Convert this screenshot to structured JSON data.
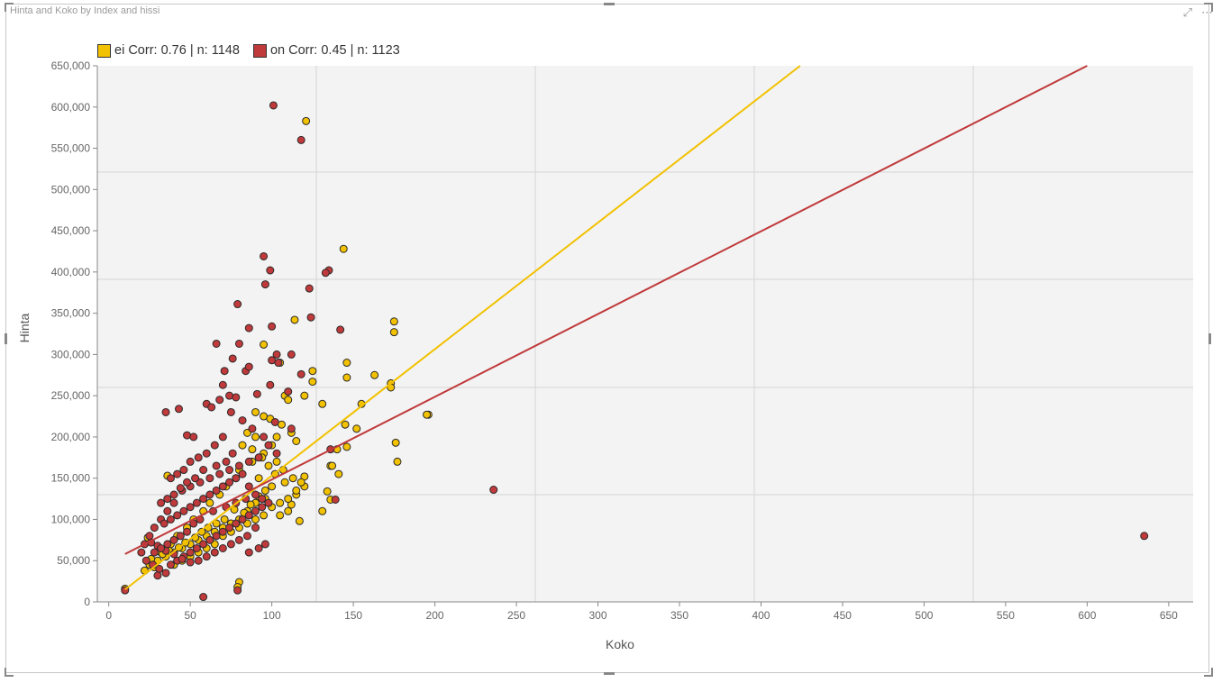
{
  "visual": {
    "title": "Hinta and Koko by Index and hissi",
    "focus_icon": "focus-mode-icon",
    "more_icon": "more-options-icon"
  },
  "legend": [
    {
      "color_name": "ei",
      "text": "Corr: 0.76 | n: 1148",
      "color": "#f2c100"
    },
    {
      "color_name": "on",
      "text": "Corr: 0.45 | n: 1123",
      "color": "#c0393b"
    }
  ],
  "chart_data": {
    "type": "scatter",
    "xlabel": "Koko",
    "ylabel": "Hinta",
    "xlim": [
      -7,
      665
    ],
    "ylim": [
      0,
      650000
    ],
    "x_ticks": [
      0,
      50,
      100,
      150,
      200,
      250,
      300,
      350,
      400,
      450,
      500,
      550,
      600,
      650
    ],
    "y_ticks": [
      0,
      50000,
      100000,
      150000,
      200000,
      250000,
      300000,
      350000,
      400000,
      450000,
      500000,
      550000,
      600000,
      650000
    ],
    "x_tick_labels": [
      "0",
      "50",
      "100",
      "150",
      "200",
      "250",
      "300",
      "350",
      "400",
      "450",
      "500",
      "550",
      "600",
      "650"
    ],
    "y_tick_labels": [
      "0",
      "50,000",
      "100,000",
      "150,000",
      "200,000",
      "250,000",
      "300,000",
      "350,000",
      "400,000",
      "450,000",
      "500,000",
      "550,000",
      "600,000",
      "650,000"
    ],
    "grid": true,
    "background": "#f3f3f3",
    "legend_position": "top-left",
    "series": [
      {
        "name": "ei",
        "color": "#f2c100",
        "trend": {
          "x": [
            10,
            424
          ],
          "y": [
            15000,
            650000
          ]
        },
        "points": [
          [
            144,
            428000
          ],
          [
            121,
            583000
          ],
          [
            95,
            312000
          ],
          [
            114,
            342000
          ],
          [
            175,
            340000
          ],
          [
            175,
            327000
          ],
          [
            146,
            290000
          ],
          [
            146,
            272000
          ],
          [
            105,
            290000
          ],
          [
            125,
            280000
          ],
          [
            125,
            267000
          ],
          [
            163,
            275000
          ],
          [
            173,
            265000
          ],
          [
            173,
            260000
          ],
          [
            108,
            250000
          ],
          [
            110,
            245000
          ],
          [
            131,
            240000
          ],
          [
            155,
            240000
          ],
          [
            120,
            250000
          ],
          [
            196,
            227000
          ],
          [
            195,
            227000
          ],
          [
            145,
            215000
          ],
          [
            152,
            210000
          ],
          [
            106,
            215000
          ],
          [
            112,
            205000
          ],
          [
            115,
            195000
          ],
          [
            103,
            200000
          ],
          [
            100,
            190000
          ],
          [
            176,
            193000
          ],
          [
            177,
            170000
          ],
          [
            146,
            188000
          ],
          [
            140,
            185000
          ],
          [
            136,
            165000
          ],
          [
            137,
            165000
          ],
          [
            141,
            155000
          ],
          [
            120,
            152000
          ],
          [
            120,
            140000
          ],
          [
            115,
            130000
          ],
          [
            112,
            118000
          ],
          [
            110,
            110000
          ],
          [
            105,
            105000
          ],
          [
            117,
            98000
          ],
          [
            131,
            110000
          ],
          [
            136,
            124000
          ],
          [
            134,
            134000
          ],
          [
            90,
            230000
          ],
          [
            95,
            225000
          ],
          [
            99,
            222000
          ],
          [
            85,
            205000
          ],
          [
            90,
            200000
          ],
          [
            95,
            180000
          ],
          [
            88,
            170000
          ],
          [
            80,
            160000
          ],
          [
            92,
            150000
          ],
          [
            100,
            140000
          ],
          [
            96,
            125000
          ],
          [
            90,
            120000
          ],
          [
            85,
            110000
          ],
          [
            80,
            100000
          ],
          [
            75,
            95000
          ],
          [
            70,
            90000
          ],
          [
            65,
            85000
          ],
          [
            60,
            80000
          ],
          [
            55,
            75000
          ],
          [
            50,
            70000
          ],
          [
            45,
            65000
          ],
          [
            40,
            60000
          ],
          [
            35,
            55000
          ],
          [
            30,
            50000
          ],
          [
            25,
            45000
          ],
          [
            22,
            38000
          ],
          [
            28,
            42000
          ],
          [
            36,
            153000
          ],
          [
            40,
            45000
          ],
          [
            45,
            50000
          ],
          [
            50,
            55000
          ],
          [
            55,
            60000
          ],
          [
            60,
            65000
          ],
          [
            65,
            70000
          ],
          [
            70,
            80000
          ],
          [
            75,
            85000
          ],
          [
            80,
            90000
          ],
          [
            85,
            95000
          ],
          [
            90,
            100000
          ],
          [
            95,
            105000
          ],
          [
            100,
            115000
          ],
          [
            105,
            120000
          ],
          [
            110,
            125000
          ],
          [
            115,
            135000
          ],
          [
            108,
            145000
          ],
          [
            102,
            155000
          ],
          [
            98,
            165000
          ],
          [
            94,
            175000
          ],
          [
            88,
            185000
          ],
          [
            82,
            190000
          ],
          [
            78,
            150000
          ],
          [
            72,
            140000
          ],
          [
            68,
            130000
          ],
          [
            62,
            120000
          ],
          [
            58,
            110000
          ],
          [
            52,
            100000
          ],
          [
            48,
            90000
          ],
          [
            42,
            80000
          ],
          [
            38,
            70000
          ],
          [
            32,
            60000
          ],
          [
            26,
            52000
          ],
          [
            24,
            78000
          ],
          [
            80,
            24000
          ],
          [
            79,
            18000
          ],
          [
            10,
            16000
          ],
          [
            103,
            170000
          ],
          [
            107,
            160000
          ],
          [
            113,
            150000
          ],
          [
            118,
            145000
          ],
          [
            96,
            135000
          ],
          [
            92,
            128000
          ],
          [
            87,
            118000
          ],
          [
            83,
            108000
          ],
          [
            77,
            112000
          ],
          [
            71,
            100000
          ],
          [
            66,
            95000
          ],
          [
            61,
            90000
          ],
          [
            57,
            85000
          ],
          [
            53,
            78000
          ],
          [
            47,
            72000
          ],
          [
            43,
            66000
          ],
          [
            37,
            62000
          ],
          [
            33,
            58000
          ]
        ]
      },
      {
        "name": "on",
        "color": "#c0393b",
        "trend": {
          "x": [
            10,
            600
          ],
          "y": [
            58000,
            650000
          ]
        },
        "points": [
          [
            101,
            602000
          ],
          [
            118,
            560000
          ],
          [
            95,
            419000
          ],
          [
            99,
            402000
          ],
          [
            135,
            402000
          ],
          [
            133,
            399000
          ],
          [
            123,
            380000
          ],
          [
            96,
            385000
          ],
          [
            79,
            361000
          ],
          [
            124,
            345000
          ],
          [
            100,
            334000
          ],
          [
            86,
            332000
          ],
          [
            142,
            330000
          ],
          [
            66,
            313000
          ],
          [
            80,
            313000
          ],
          [
            103,
            300000
          ],
          [
            112,
            300000
          ],
          [
            100,
            293000
          ],
          [
            104,
            290000
          ],
          [
            76,
            295000
          ],
          [
            84,
            280000
          ],
          [
            86,
            285000
          ],
          [
            118,
            276000
          ],
          [
            71,
            280000
          ],
          [
            99,
            263000
          ],
          [
            70,
            263000
          ],
          [
            110,
            255000
          ],
          [
            91,
            252000
          ],
          [
            74,
            250000
          ],
          [
            78,
            248000
          ],
          [
            68,
            245000
          ],
          [
            60,
            240000
          ],
          [
            63,
            236000
          ],
          [
            35,
            230000
          ],
          [
            43,
            234000
          ],
          [
            102,
            218000
          ],
          [
            112,
            210000
          ],
          [
            48,
            202000
          ],
          [
            52,
            200000
          ],
          [
            236,
            136000
          ],
          [
            635,
            80000
          ],
          [
            136,
            185000
          ],
          [
            139,
            124000
          ],
          [
            58,
            6000
          ],
          [
            79,
            14000
          ],
          [
            10,
            14000
          ],
          [
            75,
            230000
          ],
          [
            82,
            220000
          ],
          [
            88,
            210000
          ],
          [
            95,
            200000
          ],
          [
            98,
            190000
          ],
          [
            103,
            180000
          ],
          [
            92,
            175000
          ],
          [
            86,
            170000
          ],
          [
            80,
            165000
          ],
          [
            74,
            160000
          ],
          [
            68,
            155000
          ],
          [
            62,
            150000
          ],
          [
            56,
            145000
          ],
          [
            50,
            140000
          ],
          [
            45,
            135000
          ],
          [
            40,
            130000
          ],
          [
            36,
            125000
          ],
          [
            32,
            120000
          ],
          [
            70,
            200000
          ],
          [
            65,
            190000
          ],
          [
            60,
            180000
          ],
          [
            55,
            175000
          ],
          [
            50,
            170000
          ],
          [
            46,
            160000
          ],
          [
            42,
            155000
          ],
          [
            38,
            150000
          ],
          [
            76,
            180000
          ],
          [
            72,
            170000
          ],
          [
            66,
            165000
          ],
          [
            58,
            160000
          ],
          [
            53,
            150000
          ],
          [
            48,
            145000
          ],
          [
            44,
            138000
          ],
          [
            40,
            120000
          ],
          [
            36,
            110000
          ],
          [
            32,
            100000
          ],
          [
            28,
            90000
          ],
          [
            25,
            80000
          ],
          [
            22,
            70000
          ],
          [
            20,
            60000
          ],
          [
            23,
            50000
          ],
          [
            27,
            45000
          ],
          [
            31,
            40000
          ],
          [
            35,
            35000
          ],
          [
            30,
            32000
          ],
          [
            38,
            45000
          ],
          [
            42,
            50000
          ],
          [
            46,
            55000
          ],
          [
            50,
            60000
          ],
          [
            54,
            65000
          ],
          [
            58,
            70000
          ],
          [
            62,
            75000
          ],
          [
            66,
            80000
          ],
          [
            70,
            85000
          ],
          [
            74,
            90000
          ],
          [
            78,
            95000
          ],
          [
            82,
            100000
          ],
          [
            86,
            105000
          ],
          [
            90,
            110000
          ],
          [
            94,
            115000
          ],
          [
            98,
            120000
          ],
          [
            90,
            90000
          ],
          [
            85,
            80000
          ],
          [
            80,
            75000
          ],
          [
            75,
            70000
          ],
          [
            70,
            65000
          ],
          [
            65,
            60000
          ],
          [
            60,
            55000
          ],
          [
            55,
            50000
          ],
          [
            50,
            48000
          ],
          [
            45,
            52000
          ],
          [
            40,
            58000
          ],
          [
            35,
            62000
          ],
          [
            30,
            68000
          ],
          [
            26,
            72000
          ],
          [
            34,
            95000
          ],
          [
            38,
            100000
          ],
          [
            42,
            105000
          ],
          [
            46,
            110000
          ],
          [
            50,
            115000
          ],
          [
            54,
            120000
          ],
          [
            58,
            125000
          ],
          [
            62,
            130000
          ],
          [
            66,
            135000
          ],
          [
            70,
            140000
          ],
          [
            74,
            145000
          ],
          [
            78,
            150000
          ],
          [
            82,
            155000
          ],
          [
            86,
            140000
          ],
          [
            90,
            130000
          ],
          [
            94,
            125000
          ],
          [
            84,
            125000
          ],
          [
            78,
            120000
          ],
          [
            72,
            115000
          ],
          [
            64,
            110000
          ],
          [
            56,
            100000
          ],
          [
            52,
            95000
          ],
          [
            48,
            85000
          ],
          [
            44,
            80000
          ],
          [
            40,
            75000
          ],
          [
            36,
            70000
          ],
          [
            32,
            65000
          ],
          [
            28,
            60000
          ],
          [
            86,
            60000
          ],
          [
            92,
            65000
          ],
          [
            96,
            70000
          ]
        ]
      }
    ]
  }
}
